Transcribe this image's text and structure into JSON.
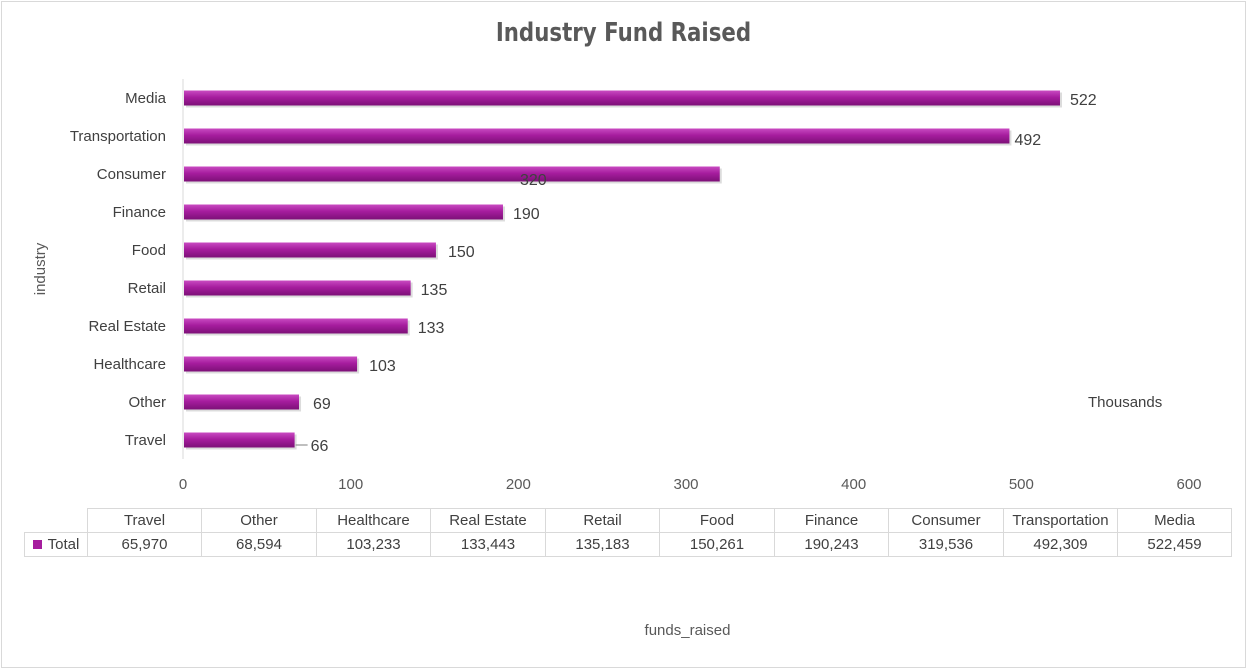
{
  "chart_data": {
    "type": "bar",
    "orientation": "horizontal",
    "title": "Industry Fund Raised",
    "xlabel": "funds_raised",
    "ylabel": "industry",
    "units_label": "Thousands",
    "xlim": [
      0,
      600
    ],
    "x_ticks": [
      "0",
      "100",
      "200",
      "300",
      "400",
      "500",
      "600"
    ],
    "categories": [
      "Travel",
      "Other",
      "Healthcare",
      "Real Estate",
      "Retail",
      "Food",
      "Finance",
      "Consumer",
      "Transportation",
      "Media"
    ],
    "series": [
      {
        "name": "Total",
        "values": [
          65970,
          68594,
          103233,
          133443,
          135183,
          150261,
          190243,
          319536,
          492309,
          522459
        ],
        "data_labels": [
          "66",
          "69",
          "103",
          "133",
          "135",
          "150",
          "190",
          "320",
          "492",
          "522"
        ],
        "table_values": [
          "65,970",
          "68,594",
          "103,233",
          "133,443",
          "135,183",
          "150,261",
          "190,243",
          "319,536",
          "492,309",
          "522,459"
        ]
      }
    ],
    "bar_color": "#a61d9e",
    "grid": false,
    "legend": "data-table"
  }
}
